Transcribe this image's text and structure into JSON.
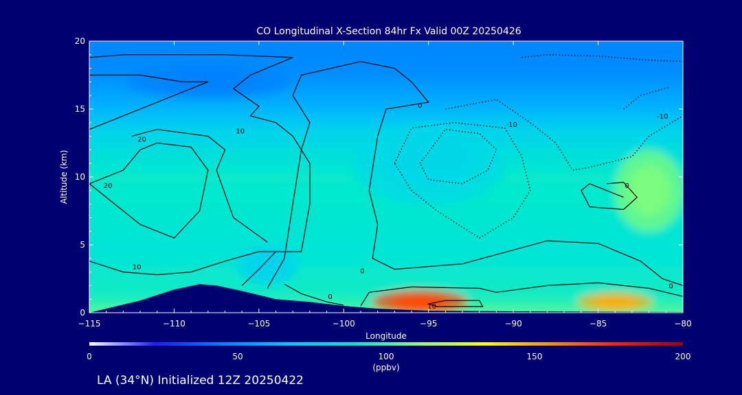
{
  "chart_data": {
    "type": "heatmap",
    "title": "CO Longitudinal X-Section 84hr  Fx Valid 00Z 20250426",
    "xlabel": "Longitude",
    "ylabel": "Altitude (km)",
    "xlim": [
      -115,
      -80
    ],
    "ylim": [
      0,
      20
    ],
    "x_ticks": [
      -115,
      -110,
      -105,
      -100,
      -95,
      -90,
      -85,
      -80
    ],
    "x_tick_labels": [
      "−115",
      "−110",
      "−105",
      "−100",
      "−95",
      "−90",
      "−85",
      "−80"
    ],
    "y_ticks": [
      0,
      5,
      10,
      15,
      20
    ],
    "y_tick_labels": [
      "0",
      "5",
      "10",
      "15",
      "20"
    ],
    "colorbar": {
      "min": 0,
      "max": 200,
      "ticks": [
        0,
        50,
        100,
        150,
        200
      ],
      "tick_labels": [
        "0",
        "50",
        "100",
        "150",
        "200"
      ],
      "units": "(ppbv)",
      "colors": [
        "#ffffff",
        "#1e1eff",
        "#0080ff",
        "#00c8ff",
        "#00e8d0",
        "#90ff70",
        "#ffff00",
        "#ff9000",
        "#ff2000",
        "#a00000"
      ]
    },
    "terrain": [
      [
        -115,
        0.0
      ],
      [
        -114,
        0.3
      ],
      [
        -112,
        0.9
      ],
      [
        -110,
        1.7
      ],
      [
        -108.5,
        2.1
      ],
      [
        -107.5,
        2.0
      ],
      [
        -106,
        1.6
      ],
      [
        -104,
        1.0
      ],
      [
        -102,
        0.8
      ],
      [
        -100,
        0.5
      ],
      [
        -98,
        0.3
      ],
      [
        -95,
        0.15
      ],
      [
        -90,
        0.1
      ],
      [
        -80,
        0.05
      ]
    ],
    "field_background": {
      "lon": [
        -115,
        -80
      ],
      "alt_km": [
        0,
        20
      ],
      "ppbv_by_altitude": [
        [
          0,
          110
        ],
        [
          2,
          92
        ],
        [
          5,
          86
        ],
        [
          10,
          90
        ],
        [
          13,
          76
        ],
        [
          15,
          58
        ],
        [
          17,
          48
        ],
        [
          20,
          46
        ]
      ]
    },
    "field_features": [
      {
        "lon": -95.5,
        "alt_km": 0.8,
        "ppbv": 170
      },
      {
        "lon": -84,
        "alt_km": 0.8,
        "ppbv": 150
      },
      {
        "lon": -82,
        "alt_km": 9,
        "ppbv": 108
      },
      {
        "lon": -95,
        "alt_km": 11,
        "ppbv": 78
      },
      {
        "lon": -104.5,
        "alt_km": 3.5,
        "ppbv": 75
      },
      {
        "lon": -108,
        "alt_km": 17,
        "ppbv": 45
      }
    ],
    "contours": [
      {
        "level": 0,
        "style": "solid",
        "points": [
          [
            -104.5,
            1.8
          ],
          [
            -103.5,
            4
          ],
          [
            -103,
            8
          ],
          [
            -102.5,
            12
          ],
          [
            -102,
            14
          ],
          [
            -103,
            16
          ],
          [
            -102.5,
            17.5
          ],
          [
            -99,
            18.5
          ],
          [
            -97,
            18
          ],
          [
            -96,
            17
          ],
          [
            -95,
            15.5
          ],
          [
            -97.5,
            15
          ],
          [
            -98,
            13
          ],
          [
            -98.5,
            9
          ],
          [
            -98,
            6.5
          ],
          [
            -98.3,
            4
          ],
          [
            -97,
            3.2
          ],
          [
            -93,
            3.6
          ],
          [
            -88,
            5.3
          ],
          [
            -85,
            5.1
          ],
          [
            -82.5,
            3.8
          ],
          [
            -81.2,
            2.5
          ],
          [
            -80,
            2.0
          ]
        ]
      },
      {
        "level": 0,
        "style": "solid",
        "points": [
          [
            -106,
            2.0
          ],
          [
            -105,
            3.2
          ],
          [
            -104,
            4.5
          ]
        ]
      },
      {
        "level": 0,
        "style": "solid",
        "points": [
          [
            -103.5,
            2.1
          ],
          [
            -102.5,
            1.4
          ],
          [
            -101,
            0.8
          ],
          [
            -100,
            0.55
          ]
        ]
      },
      {
        "level": 0,
        "style": "solid",
        "points": [
          [
            -99,
            0.5
          ],
          [
            -98.5,
            1.5
          ],
          [
            -96,
            1.9
          ],
          [
            -92,
            1.8
          ],
          [
            -91,
            1.5
          ],
          [
            -88,
            2.0
          ],
          [
            -85,
            2.2
          ],
          [
            -82,
            1.8
          ],
          [
            -80,
            1.2
          ]
        ]
      },
      {
        "level": 10,
        "style": "solid",
        "points": [
          [
            -94,
            0.9
          ],
          [
            -92,
            0.9
          ],
          [
            -91.8,
            0.45
          ],
          [
            -94.5,
            0.45
          ],
          [
            -95,
            0.65
          ],
          [
            -94,
            0.9
          ]
        ]
      },
      {
        "level": 0,
        "style": "solid",
        "points": [
          [
            -83.5,
            8.5
          ],
          [
            -84.5,
            9.0
          ],
          [
            -85.5,
            9.5
          ],
          [
            -86,
            9.0
          ],
          [
            -85.5,
            7.8
          ],
          [
            -83.5,
            7.6
          ],
          [
            -82.7,
            8.5
          ],
          [
            -83.5,
            9.6
          ],
          [
            -84.5,
            9.5
          ]
        ]
      },
      {
        "level": 10,
        "style": "solid",
        "points": [
          [
            -115,
            3.8
          ],
          [
            -113,
            3.0
          ],
          [
            -111,
            2.8
          ],
          [
            -109,
            3.0
          ],
          [
            -107,
            3.8
          ],
          [
            -105,
            4.5
          ],
          [
            -102.5,
            4.5
          ],
          [
            -102,
            8
          ],
          [
            -102,
            11
          ],
          [
            -103,
            13
          ],
          [
            -104,
            14
          ],
          [
            -105.5,
            14.5
          ],
          [
            -105,
            15.2
          ],
          [
            -106.5,
            16.5
          ],
          [
            -105.5,
            17.5
          ],
          [
            -103,
            18.8
          ],
          [
            -107,
            19.0
          ],
          [
            -113,
            19.0
          ],
          [
            -115,
            18.8
          ]
        ]
      },
      {
        "level": 20,
        "style": "solid",
        "points": [
          [
            -115,
            9.5
          ],
          [
            -113,
            10.5
          ],
          [
            -112,
            12
          ],
          [
            -111,
            12.5
          ],
          [
            -109,
            12.2
          ],
          [
            -108,
            10.5
          ],
          [
            -108.5,
            7.5
          ],
          [
            -110,
            5.5
          ],
          [
            -112,
            6.5
          ],
          [
            -113.5,
            8
          ],
          [
            -115,
            9.5
          ]
        ]
      },
      {
        "level": 10,
        "style": "solid",
        "points": [
          [
            -115,
            10.5
          ],
          [
            -115,
            13.5
          ],
          [
            -113,
            14.5
          ],
          [
            -110,
            16
          ],
          [
            -108,
            17
          ],
          [
            -109.5,
            17
          ],
          [
            -112,
            17.5
          ],
          [
            -115,
            17.5
          ]
        ]
      },
      {
        "level": 10,
        "style": "solid",
        "points": [
          [
            -112.5,
            13
          ],
          [
            -111,
            13.5
          ],
          [
            -108,
            13
          ],
          [
            -107,
            12
          ],
          [
            -107.5,
            10.5
          ],
          [
            -106.5,
            7
          ],
          [
            -104.5,
            5.2
          ]
        ]
      },
      {
        "level": -10,
        "style": "dotted",
        "points": [
          [
            -95.5,
            11
          ],
          [
            -94,
            13.5
          ],
          [
            -92,
            13.2
          ],
          [
            -91,
            12
          ],
          [
            -91.5,
            10.5
          ],
          [
            -93,
            9.5
          ],
          [
            -95,
            9.8
          ],
          [
            -95.5,
            11
          ]
        ]
      },
      {
        "level": -10,
        "style": "dotted",
        "points": [
          [
            -97,
            11
          ],
          [
            -96,
            13.6
          ],
          [
            -93.5,
            14.0
          ],
          [
            -90.5,
            13.6
          ],
          [
            -89.5,
            11.5
          ],
          [
            -89,
            9
          ],
          [
            -90,
            7
          ],
          [
            -92,
            5.5
          ],
          [
            -94.5,
            7.5
          ],
          [
            -96,
            9
          ],
          [
            -97,
            11
          ]
        ]
      },
      {
        "level": -10,
        "style": "dotted",
        "points": [
          [
            -94,
            15
          ],
          [
            -91,
            15.7
          ],
          [
            -89,
            14
          ],
          [
            -87.5,
            12.5
          ],
          [
            -86.5,
            10.5
          ],
          [
            -85.5,
            10.7
          ],
          [
            -83,
            11.5
          ],
          [
            -82,
            13
          ],
          [
            -80,
            14.5
          ]
        ]
      },
      {
        "level": -10,
        "style": "dotted",
        "points": [
          [
            -83.5,
            15
          ],
          [
            -82.5,
            16.0
          ],
          [
            -80.8,
            16.6
          ]
        ]
      },
      {
        "level": -10,
        "style": "dotted",
        "points": [
          [
            -89.5,
            18.8
          ],
          [
            -88,
            19.0
          ],
          [
            -85,
            18.9
          ],
          [
            -82,
            18.6
          ],
          [
            -80,
            18.5
          ]
        ]
      }
    ],
    "contour_labels": [
      {
        "text": "0",
        "lon": -98.9,
        "alt_km": 3.1
      },
      {
        "text": "0",
        "lon": -95.5,
        "alt_km": 15.3
      },
      {
        "text": "0",
        "lon": -100.8,
        "alt_km": 1.2
      },
      {
        "text": "0",
        "lon": -80.7,
        "alt_km": 2.0
      },
      {
        "text": "0",
        "lon": -83.3,
        "alt_km": 9.4
      },
      {
        "text": "10",
        "lon": -94.8,
        "alt_km": 0.5
      },
      {
        "text": "10",
        "lon": -106.1,
        "alt_km": 13.4
      },
      {
        "text": "10",
        "lon": -112.2,
        "alt_km": 3.4
      },
      {
        "text": "20",
        "lon": -113.9,
        "alt_km": 9.4
      },
      {
        "text": "20",
        "lon": -111.9,
        "alt_km": 12.8
      },
      {
        "text": "-10",
        "lon": -90.1,
        "alt_km": 13.9
      },
      {
        "text": "-10",
        "lon": -81.2,
        "alt_km": 14.5
      }
    ]
  },
  "footer": {
    "text": "LA (34°N) Initialized 12Z 20250422"
  },
  "colors": {
    "background": "#000070",
    "text": "#ffffff",
    "terrain": "#000070",
    "contour": "#000000"
  }
}
